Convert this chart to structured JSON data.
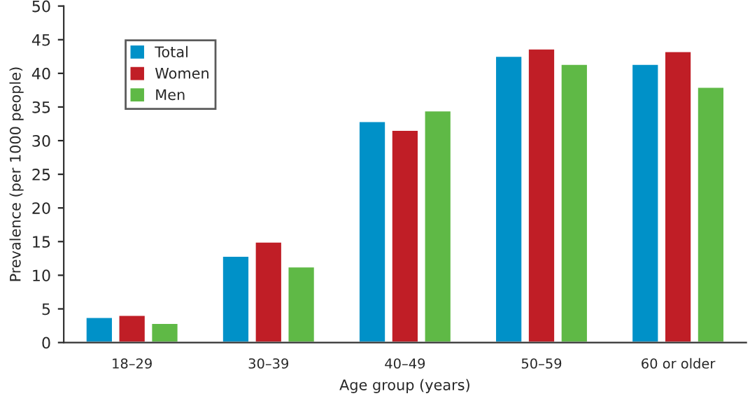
{
  "chart_data": {
    "type": "bar",
    "xlabel": "Age group (years)",
    "ylabel": "Prevalence (per 1000 people)",
    "categories": [
      "18–29",
      "30–39",
      "40–49",
      "50–59",
      "60 or older"
    ],
    "series": [
      {
        "name": "Total",
        "color": "#0091c8",
        "values": [
          3.8,
          12.9,
          32.9,
          42.6,
          41.4
        ]
      },
      {
        "name": "Women",
        "color": "#c01e26",
        "values": [
          4.1,
          15.0,
          31.6,
          43.7,
          43.3
        ]
      },
      {
        "name": "Men",
        "color": "#5fb946",
        "values": [
          2.9,
          11.3,
          34.5,
          41.4,
          38.0
        ]
      }
    ],
    "ylim": [
      0,
      50
    ],
    "yticks": [
      0,
      5,
      10,
      15,
      20,
      25,
      30,
      35,
      40,
      45,
      50
    ],
    "grid": false,
    "legend": "top left"
  }
}
